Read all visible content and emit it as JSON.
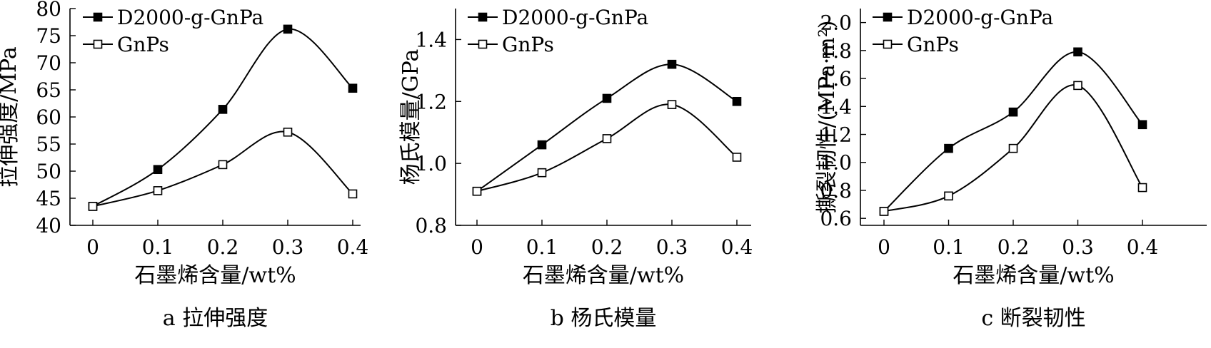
{
  "chart_data": [
    {
      "type": "line",
      "caption": "a 拉伸强度",
      "xlabel": "石墨烯含量/wt%",
      "ylabel": "拉伸强度/MPa",
      "x": [
        0,
        0.1,
        0.2,
        0.3,
        0.4
      ],
      "xticks": [
        "0",
        "0.1",
        "0.2",
        "0.3",
        "0.4"
      ],
      "ylim": [
        40,
        80
      ],
      "yticks": [
        "40",
        "45",
        "50",
        "55",
        "60",
        "65",
        "70",
        "75",
        "80"
      ],
      "legend_position": "top-left",
      "series": [
        {
          "name": "D2000-g-GnPa",
          "marker": "filled-square",
          "values": [
            43.5,
            50.3,
            61.4,
            76.2,
            65.3
          ]
        },
        {
          "name": "GnPs",
          "marker": "open-square",
          "values": [
            43.5,
            46.4,
            51.2,
            57.2,
            45.8
          ]
        }
      ]
    },
    {
      "type": "line",
      "caption": "b 杨氏模量",
      "xlabel": "石墨烯含量/wt%",
      "ylabel": "杨氏模量/GPa",
      "x": [
        0,
        0.1,
        0.2,
        0.3,
        0.4
      ],
      "xticks": [
        "0",
        "0.1",
        "0.2",
        "0.3",
        "0.4"
      ],
      "ylim": [
        0.8,
        1.5
      ],
      "yticks": [
        "0.8",
        "1.0",
        "1.2",
        "1.4"
      ],
      "legend_position": "top-left",
      "series": [
        {
          "name": "D2000-g-GnPa",
          "marker": "filled-square",
          "values": [
            0.91,
            1.06,
            1.21,
            1.32,
            1.2
          ]
        },
        {
          "name": "GnPs",
          "marker": "open-square",
          "values": [
            0.91,
            0.97,
            1.08,
            1.19,
            1.02
          ]
        }
      ]
    },
    {
      "type": "line",
      "caption": "c 断裂韧性",
      "xlabel": "石墨烯含量/wt%",
      "ylabel": "撕裂韧性/(MPa·m²)",
      "x": [
        0,
        0.1,
        0.2,
        0.3,
        0.4
      ],
      "xticks": [
        "0",
        "0.1",
        "0.2",
        "0.3",
        "0.4"
      ],
      "ylim": [
        0.55,
        2.1
      ],
      "yticks": [
        "0.6",
        "0.8",
        "1.0",
        "1.2",
        "1.4",
        "1.6",
        "1.8",
        "2.0"
      ],
      "legend_position": "top-left",
      "series": [
        {
          "name": "D2000-g-GnPa",
          "marker": "filled-square",
          "values": [
            0.65,
            1.1,
            1.36,
            1.79,
            1.27
          ]
        },
        {
          "name": "GnPs",
          "marker": "open-square",
          "values": [
            0.65,
            0.76,
            1.1,
            1.55,
            0.82
          ]
        }
      ]
    }
  ]
}
